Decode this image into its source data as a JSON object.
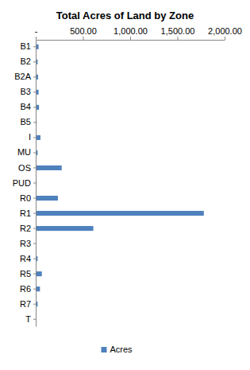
{
  "chart_data": {
    "type": "bar",
    "title": "Total Acres of Land by Zone",
    "orientation": "horizontal",
    "categories": [
      "B1",
      "B2",
      "B2A",
      "B3",
      "B4",
      "B5",
      "I",
      "MU",
      "OS",
      "PUD",
      "R0",
      "R1",
      "R2",
      "R3",
      "R4",
      "R5",
      "R6",
      "R7",
      "T"
    ],
    "series": [
      {
        "name": "Acres",
        "color": "#4f81bd",
        "values": [
          30,
          20,
          25,
          30,
          35,
          10,
          50,
          20,
          275,
          10,
          235,
          1780,
          610,
          5,
          20,
          65,
          45,
          20,
          0
        ]
      }
    ],
    "xlim": [
      0,
      2000
    ],
    "xticks": [
      {
        "value": 0,
        "label": "-"
      },
      {
        "value": 500,
        "label": "500.00"
      },
      {
        "value": 1000,
        "label": "1,000.00"
      },
      {
        "value": 1500,
        "label": "1,500.00"
      },
      {
        "value": 2000,
        "label": "2,000.00"
      }
    ],
    "legend": "bottom",
    "grid": false
  }
}
